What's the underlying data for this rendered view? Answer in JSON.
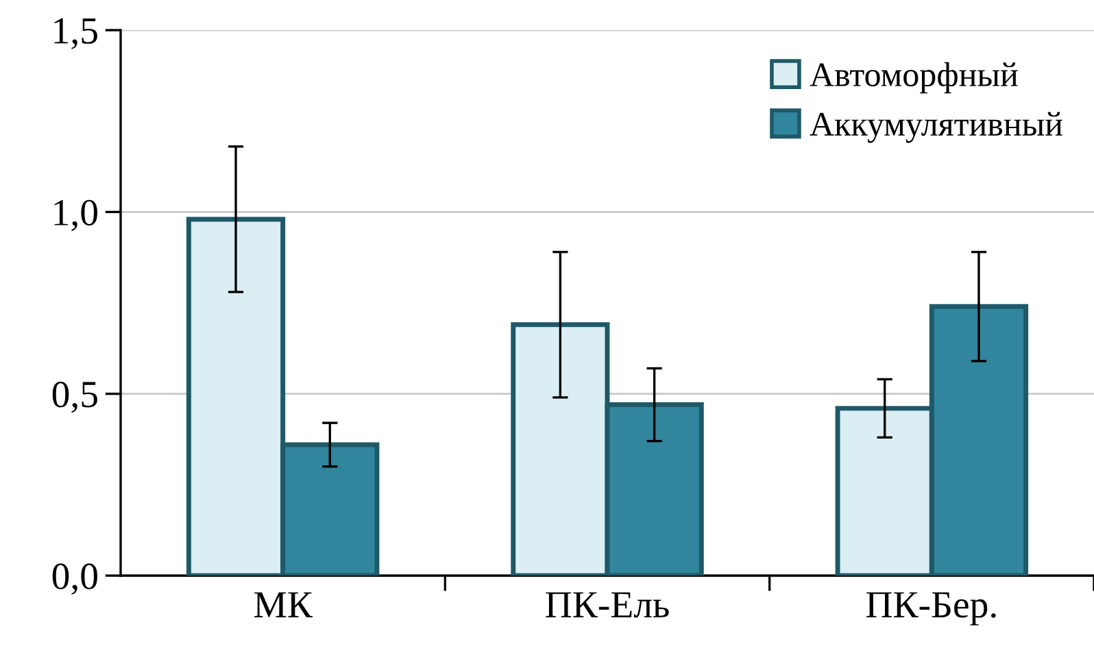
{
  "chart_data": {
    "type": "bar",
    "categories": [
      "МК",
      "ПК-Ель",
      "ПК-Бер."
    ],
    "series": [
      {
        "name": "Автоморфный",
        "color": "#dbeef3",
        "values": [
          0.98,
          0.69,
          0.46
        ],
        "errors": [
          0.2,
          0.2,
          0.08
        ]
      },
      {
        "name": "Аккумулятивный",
        "color": "#31859c",
        "values": [
          0.36,
          0.47,
          0.74
        ],
        "errors": [
          0.06,
          0.1,
          0.15
        ]
      }
    ],
    "ylim": [
      0,
      1.5
    ],
    "yticks": [
      {
        "value": 0,
        "label": "0,0"
      },
      {
        "value": 0.5,
        "label": "0,5"
      },
      {
        "value": 1.0,
        "label": "1,0"
      },
      {
        "value": 1.5,
        "label": "1,5"
      }
    ],
    "grid": "y",
    "legend": "top right"
  }
}
